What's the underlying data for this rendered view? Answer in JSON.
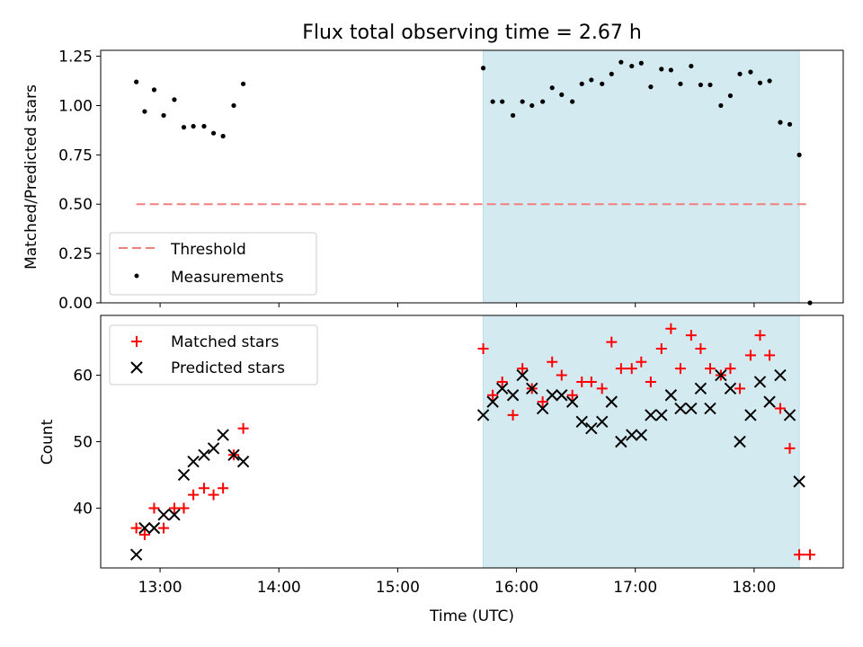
{
  "chart_data": [
    {
      "type": "scatter",
      "title": "Flux total observing time = 2.67 h",
      "xlabel": "",
      "ylabel": "Matched/Predicted stars",
      "xlim": [
        12.5,
        18.75
      ],
      "ylim": [
        0.0,
        1.28
      ],
      "yticks": [
        0.0,
        0.25,
        0.5,
        0.75,
        1.0,
        1.25
      ],
      "ytick_labels": [
        "0.00",
        "0.25",
        "0.50",
        "0.75",
        "1.00",
        "1.25"
      ],
      "shaded_span": {
        "x0": 15.72,
        "x1": 18.38,
        "color": "#d4eaf1"
      },
      "threshold": {
        "name": "Threshold",
        "y": 0.5,
        "x0": 12.8,
        "x1": 18.45,
        "color": "#f08080"
      },
      "series": [
        {
          "name": "Measurements",
          "color": "#000000",
          "x": [
            12.8,
            12.87,
            12.95,
            13.03,
            13.12,
            13.2,
            13.28,
            13.37,
            13.45,
            13.53,
            13.62,
            13.7,
            15.72,
            15.8,
            15.88,
            15.97,
            16.05,
            16.13,
            16.22,
            16.3,
            16.38,
            16.47,
            16.55,
            16.63,
            16.72,
            16.8,
            16.88,
            16.97,
            17.05,
            17.13,
            17.22,
            17.3,
            17.38,
            17.47,
            17.55,
            17.63,
            17.72,
            17.8,
            17.88,
            17.97,
            18.05,
            18.13,
            18.22,
            18.3,
            18.38,
            18.47
          ],
          "y": [
            1.12,
            0.97,
            1.08,
            0.95,
            1.03,
            0.89,
            0.895,
            0.895,
            0.86,
            0.845,
            1.0,
            1.11,
            1.19,
            1.02,
            1.02,
            0.95,
            1.02,
            1.0,
            1.02,
            1.09,
            1.055,
            1.02,
            1.11,
            1.13,
            1.11,
            1.16,
            1.22,
            1.2,
            1.215,
            1.095,
            1.185,
            1.18,
            1.11,
            1.2,
            1.105,
            1.105,
            1.0,
            1.05,
            1.16,
            1.17,
            1.115,
            1.125,
            0.915,
            0.905,
            0.75,
            0.0
          ]
        }
      ],
      "legend": {
        "placement": "lower-left",
        "entries": [
          "Threshold",
          "Measurements"
        ]
      }
    },
    {
      "type": "scatter",
      "title": "",
      "xlabel": "Time (UTC)",
      "ylabel": "Count",
      "xlim": [
        12.5,
        18.75
      ],
      "ylim": [
        31,
        69
      ],
      "xticks": [
        13,
        14,
        15,
        16,
        17,
        18
      ],
      "xtick_labels": [
        "13:00",
        "14:00",
        "15:00",
        "16:00",
        "17:00",
        "18:00"
      ],
      "yticks": [
        40,
        50,
        60
      ],
      "ytick_labels": [
        "40",
        "50",
        "60"
      ],
      "shaded_span": {
        "x0": 15.72,
        "x1": 18.38,
        "color": "#d4eaf1"
      },
      "series": [
        {
          "name": "Matched stars",
          "marker": "+",
          "color": "#ff0000",
          "x": [
            12.8,
            12.87,
            12.95,
            13.03,
            13.12,
            13.2,
            13.28,
            13.37,
            13.45,
            13.53,
            13.62,
            13.7,
            15.72,
            15.8,
            15.88,
            15.97,
            16.05,
            16.13,
            16.22,
            16.3,
            16.38,
            16.47,
            16.55,
            16.63,
            16.72,
            16.8,
            16.88,
            16.97,
            17.05,
            17.13,
            17.22,
            17.3,
            17.38,
            17.47,
            17.55,
            17.63,
            17.72,
            17.8,
            17.88,
            17.97,
            18.05,
            18.13,
            18.22,
            18.3,
            18.38,
            18.47
          ],
          "y": [
            37,
            36,
            40,
            37,
            40,
            40,
            42,
            43,
            42,
            43,
            48,
            52,
            64,
            57,
            59,
            54,
            61,
            58,
            56,
            62,
            60,
            57,
            59,
            59,
            58,
            65,
            61,
            61,
            62,
            59,
            64,
            67,
            61,
            66,
            64,
            61,
            60,
            61,
            58,
            63,
            66,
            63,
            55,
            49,
            33,
            33
          ]
        },
        {
          "name": "Predicted stars",
          "marker": "x",
          "color": "#000000",
          "x": [
            12.8,
            12.87,
            12.95,
            13.03,
            13.12,
            13.2,
            13.28,
            13.37,
            13.45,
            13.53,
            13.62,
            13.7,
            15.72,
            15.8,
            15.88,
            15.97,
            16.05,
            16.13,
            16.22,
            16.3,
            16.38,
            16.47,
            16.55,
            16.63,
            16.72,
            16.8,
            16.88,
            16.97,
            17.05,
            17.13,
            17.22,
            17.3,
            17.38,
            17.47,
            17.55,
            17.63,
            17.72,
            17.8,
            17.88,
            17.97,
            18.05,
            18.13,
            18.22,
            18.3,
            18.38
          ],
          "y": [
            33,
            37,
            37,
            39,
            39,
            45,
            47,
            48,
            49,
            51,
            48,
            47,
            54,
            56,
            58,
            57,
            60,
            58,
            55,
            57,
            57,
            56,
            53,
            52,
            53,
            56,
            50,
            51,
            51,
            54,
            54,
            57,
            55,
            55,
            58,
            55,
            60,
            58,
            50,
            54,
            59,
            56,
            60,
            54,
            44
          ]
        }
      ],
      "legend": {
        "placement": "upper-left",
        "entries": [
          "Matched stars",
          "Predicted stars"
        ]
      }
    }
  ]
}
